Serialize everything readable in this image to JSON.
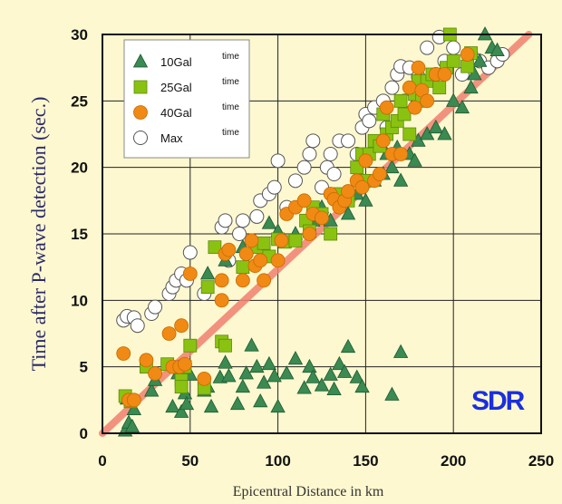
{
  "chart_data": {
    "type": "scatter",
    "title": "",
    "xlabel": "Epicentral Distance in km",
    "ylabel": "Time after P-wave detection (sec.)",
    "xlim": [
      0,
      250
    ],
    "ylim": [
      0,
      30
    ],
    "xticks": [
      "0",
      "50",
      "100",
      "150",
      "200",
      "250"
    ],
    "yticks": [
      "0",
      "5",
      "10",
      "15",
      "20",
      "25",
      "30"
    ],
    "grid": true,
    "legend_position": "top-left",
    "logo": "SDR",
    "trend_line": {
      "color": "#f08070",
      "points": [
        [
          0,
          0
        ],
        [
          243,
          30
        ]
      ]
    },
    "series": [
      {
        "name": "10Gal",
        "suffix": "time",
        "marker": "triangle",
        "color": "#3a8a52",
        "points": [
          [
            13,
            0.2
          ],
          [
            15,
            0.8
          ],
          [
            17,
            0.5
          ],
          [
            14,
            2.6
          ],
          [
            18,
            1.8
          ],
          [
            28,
            3.2
          ],
          [
            30,
            4
          ],
          [
            40,
            2
          ],
          [
            43,
            4.5
          ],
          [
            45,
            1.6
          ],
          [
            47,
            3
          ],
          [
            48,
            2.2
          ],
          [
            50,
            4.4
          ],
          [
            58,
            3.2
          ],
          [
            60,
            3.5
          ],
          [
            62,
            2
          ],
          [
            67,
            4.2
          ],
          [
            70,
            5.3
          ],
          [
            72,
            4.3
          ],
          [
            77,
            2.2
          ],
          [
            80,
            3.5
          ],
          [
            82,
            4.5
          ],
          [
            85,
            6.6
          ],
          [
            88,
            5
          ],
          [
            90,
            2.4
          ],
          [
            92,
            3.8
          ],
          [
            95,
            5.2
          ],
          [
            98,
            4.3
          ],
          [
            100,
            2
          ],
          [
            105,
            4.5
          ],
          [
            110,
            5.6
          ],
          [
            115,
            3.4
          ],
          [
            118,
            5
          ],
          [
            120,
            4.2
          ],
          [
            125,
            3.6
          ],
          [
            130,
            4.4
          ],
          [
            132,
            3.3
          ],
          [
            135,
            5.2
          ],
          [
            138,
            4.6
          ],
          [
            140,
            6.5
          ],
          [
            145,
            4.2
          ],
          [
            148,
            3.5
          ],
          [
            165,
            2.9
          ],
          [
            170,
            6.1
          ],
          [
            60,
            12
          ],
          [
            70,
            13
          ],
          [
            80,
            14
          ],
          [
            90,
            14
          ],
          [
            95,
            15.8
          ],
          [
            100,
            15.2
          ],
          [
            110,
            15
          ],
          [
            120,
            16
          ],
          [
            125,
            17
          ],
          [
            130,
            16
          ],
          [
            140,
            16.5
          ],
          [
            145,
            18
          ],
          [
            150,
            17.5
          ],
          [
            155,
            19
          ],
          [
            160,
            19.5
          ],
          [
            162,
            21
          ],
          [
            165,
            20
          ],
          [
            168,
            21.5
          ],
          [
            170,
            19
          ],
          [
            175,
            21
          ],
          [
            178,
            20.5
          ],
          [
            180,
            22
          ],
          [
            185,
            22.5
          ],
          [
            190,
            23
          ],
          [
            195,
            22.5
          ],
          [
            200,
            25
          ],
          [
            205,
            24.5
          ],
          [
            210,
            26
          ],
          [
            212,
            27
          ],
          [
            215,
            28
          ],
          [
            218,
            30
          ],
          [
            222,
            29
          ],
          [
            225,
            28.8
          ]
        ]
      },
      {
        "name": "25Gal",
        "suffix": "time",
        "marker": "square",
        "color": "#8ac212",
        "points": [
          [
            13,
            2.8
          ],
          [
            16,
            2.4
          ],
          [
            25,
            5
          ],
          [
            37,
            5.2
          ],
          [
            45,
            4
          ],
          [
            47,
            5
          ],
          [
            50,
            6.6
          ],
          [
            58,
            3.4
          ],
          [
            68,
            6.9
          ],
          [
            70,
            6.6
          ],
          [
            80,
            12.5
          ],
          [
            88,
            14
          ],
          [
            92,
            14.3
          ],
          [
            95,
            13.3
          ],
          [
            100,
            14.6
          ],
          [
            104,
            14.4
          ],
          [
            110,
            14.5
          ],
          [
            116,
            16
          ],
          [
            118,
            15.2
          ],
          [
            120,
            17
          ],
          [
            125,
            16.5
          ],
          [
            130,
            15
          ],
          [
            135,
            18
          ],
          [
            140,
            17.5
          ],
          [
            145,
            20
          ],
          [
            148,
            21
          ],
          [
            150,
            19
          ],
          [
            152,
            21
          ],
          [
            155,
            22
          ],
          [
            158,
            21.6
          ],
          [
            160,
            24
          ],
          [
            162,
            22.5
          ],
          [
            165,
            23
          ],
          [
            168,
            23.5
          ],
          [
            170,
            25
          ],
          [
            172,
            24
          ],
          [
            175,
            22.5
          ],
          [
            178,
            25.5
          ],
          [
            180,
            26.5
          ],
          [
            182,
            25
          ],
          [
            185,
            26.5
          ],
          [
            188,
            27
          ],
          [
            192,
            26
          ],
          [
            196,
            27.5
          ],
          [
            198,
            30
          ],
          [
            200,
            28
          ],
          [
            208,
            27.6
          ],
          [
            210,
            28.6
          ],
          [
            45,
            3.5
          ],
          [
            60,
            11
          ],
          [
            64,
            14
          ]
        ]
      },
      {
        "name": "40Gal",
        "suffix": "time",
        "marker": "circle",
        "color": "#f08a14",
        "points": [
          [
            12,
            6
          ],
          [
            15,
            2.5
          ],
          [
            18,
            2.5
          ],
          [
            25,
            5.5
          ],
          [
            30,
            4.5
          ],
          [
            38,
            7.5
          ],
          [
            40,
            5
          ],
          [
            44,
            5
          ],
          [
            45,
            8.1
          ],
          [
            47,
            5.2
          ],
          [
            50,
            12
          ],
          [
            58,
            4.1
          ],
          [
            68,
            10
          ],
          [
            68,
            11.5
          ],
          [
            70,
            13.5
          ],
          [
            72,
            13.8
          ],
          [
            80,
            11.5
          ],
          [
            82,
            13.5
          ],
          [
            85,
            14.5
          ],
          [
            87,
            12.6
          ],
          [
            90,
            13
          ],
          [
            92,
            11.5
          ],
          [
            100,
            13
          ],
          [
            102,
            14.5
          ],
          [
            105,
            16.5
          ],
          [
            110,
            17
          ],
          [
            115,
            17.5
          ],
          [
            118,
            15
          ],
          [
            120,
            16.5
          ],
          [
            125,
            16.2
          ],
          [
            130,
            18
          ],
          [
            132,
            17.6
          ],
          [
            135,
            17
          ],
          [
            138,
            17.5
          ],
          [
            140,
            18.2
          ],
          [
            145,
            19
          ],
          [
            148,
            18.5
          ],
          [
            150,
            20.5
          ],
          [
            155,
            19
          ],
          [
            158,
            19.5
          ],
          [
            160,
            22
          ],
          [
            162,
            24.5
          ],
          [
            165,
            21
          ],
          [
            170,
            21
          ],
          [
            175,
            26
          ],
          [
            178,
            24.5
          ],
          [
            180,
            27.5
          ],
          [
            182,
            25.8
          ],
          [
            185,
            25
          ],
          [
            190,
            27
          ],
          [
            195,
            27
          ],
          [
            208,
            28.5
          ]
        ]
      },
      {
        "name": "Max",
        "suffix": "time",
        "marker": "open-circle",
        "color": "#555555",
        "points": [
          [
            12,
            8.5
          ],
          [
            14,
            8.8
          ],
          [
            18,
            8.7
          ],
          [
            20,
            8.1
          ],
          [
            28,
            9
          ],
          [
            30,
            9.5
          ],
          [
            38,
            10.5
          ],
          [
            40,
            11
          ],
          [
            42,
            11.5
          ],
          [
            45,
            12
          ],
          [
            48,
            11.5
          ],
          [
            50,
            13.6
          ],
          [
            58,
            10.5
          ],
          [
            68,
            15.5
          ],
          [
            70,
            16
          ],
          [
            72,
            13
          ],
          [
            78,
            15
          ],
          [
            80,
            16
          ],
          [
            88,
            16.3
          ],
          [
            90,
            17.5
          ],
          [
            95,
            18
          ],
          [
            98,
            18.5
          ],
          [
            100,
            20.5
          ],
          [
            105,
            17
          ],
          [
            110,
            19
          ],
          [
            115,
            20
          ],
          [
            118,
            21
          ],
          [
            120,
            22
          ],
          [
            125,
            18.5
          ],
          [
            128,
            20
          ],
          [
            130,
            21
          ],
          [
            132,
            19.5
          ],
          [
            135,
            22
          ],
          [
            140,
            22
          ],
          [
            145,
            21
          ],
          [
            148,
            23
          ],
          [
            150,
            24
          ],
          [
            152,
            23.5
          ],
          [
            155,
            24.5
          ],
          [
            160,
            25
          ],
          [
            162,
            23
          ],
          [
            165,
            26
          ],
          [
            168,
            27
          ],
          [
            170,
            27.6
          ],
          [
            172,
            25
          ],
          [
            175,
            27.5
          ],
          [
            178,
            26
          ],
          [
            180,
            26.8
          ],
          [
            182,
            26.5
          ],
          [
            185,
            29
          ],
          [
            190,
            27
          ],
          [
            192,
            29.8
          ],
          [
            195,
            28
          ],
          [
            200,
            29
          ],
          [
            205,
            27
          ],
          [
            210,
            28.5
          ],
          [
            215,
            28
          ],
          [
            220,
            27.5
          ],
          [
            225,
            28
          ],
          [
            228,
            28.5
          ]
        ]
      }
    ]
  }
}
